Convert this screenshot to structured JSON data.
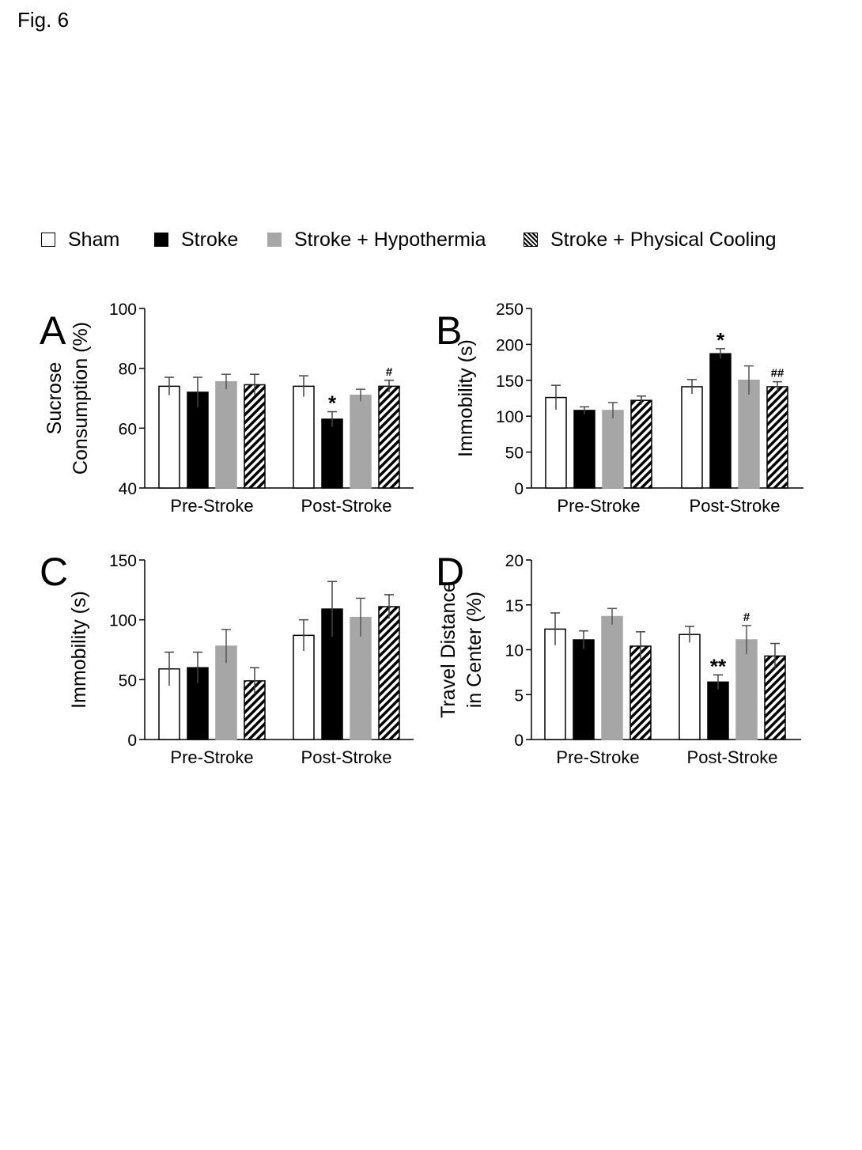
{
  "figure_title": "Fig. 6",
  "colors": {
    "sham": "#ffffff",
    "stroke": "#000000",
    "hypothermia": "#a6a6a6",
    "cooling_stripe": "#000000"
  },
  "legend": [
    {
      "key": "sham",
      "label": "Sham"
    },
    {
      "key": "stroke",
      "label": "Stroke"
    },
    {
      "key": "hypothermia",
      "label": "Stroke + Hypothermia"
    },
    {
      "key": "cooling",
      "label": "Stroke + Physical Cooling"
    }
  ],
  "chart_data": [
    {
      "panel": "A",
      "type": "bar",
      "ylabel": [
        "Sucrose",
        "Consumption (%)"
      ],
      "ylim": [
        40,
        100
      ],
      "yticks": [
        "40",
        "60",
        "80",
        "100"
      ],
      "categories": [
        "Pre-Stroke",
        "Post-Stroke"
      ],
      "series": [
        {
          "key": "sham",
          "values": [
            74,
            74
          ],
          "errors": [
            3,
            3.5
          ]
        },
        {
          "key": "stroke",
          "values": [
            72,
            63
          ],
          "errors": [
            5,
            2.5
          ]
        },
        {
          "key": "hypothermia",
          "values": [
            75.5,
            71
          ],
          "errors": [
            2.5,
            2
          ]
        },
        {
          "key": "cooling",
          "values": [
            74.5,
            74
          ],
          "errors": [
            3.5,
            2
          ]
        }
      ],
      "annotations": [
        {
          "category": 1,
          "series": 1,
          "text": "*"
        },
        {
          "category": 1,
          "series": 3,
          "text": "#"
        }
      ]
    },
    {
      "panel": "B",
      "type": "bar",
      "ylabel": [
        "Immobility (s)"
      ],
      "ylim": [
        0,
        250
      ],
      "yticks": [
        "0",
        "50",
        "100",
        "150",
        "200",
        "250"
      ],
      "categories": [
        "Pre-Stroke",
        "Post-Stroke"
      ],
      "series": [
        {
          "key": "sham",
          "values": [
            126,
            141
          ],
          "errors": [
            17,
            10
          ]
        },
        {
          "key": "stroke",
          "values": [
            108,
            187
          ],
          "errors": [
            5,
            7
          ]
        },
        {
          "key": "hypothermia",
          "values": [
            108,
            150
          ],
          "errors": [
            11,
            20
          ]
        },
        {
          "key": "cooling",
          "values": [
            122,
            141
          ],
          "errors": [
            6,
            7
          ]
        }
      ],
      "annotations": [
        {
          "category": 1,
          "series": 1,
          "text": "*"
        },
        {
          "category": 1,
          "series": 3,
          "text": "##"
        }
      ]
    },
    {
      "panel": "C",
      "type": "bar",
      "ylabel": [
        "Immobility (s)"
      ],
      "ylim": [
        0,
        150
      ],
      "yticks": [
        "0",
        "50",
        "100",
        "150"
      ],
      "categories": [
        "Pre-Stroke",
        "Post-Stroke"
      ],
      "series": [
        {
          "key": "sham",
          "values": [
            59,
            87
          ],
          "errors": [
            14,
            13
          ]
        },
        {
          "key": "stroke",
          "values": [
            60,
            109
          ],
          "errors": [
            13,
            23
          ]
        },
        {
          "key": "hypothermia",
          "values": [
            78,
            102
          ],
          "errors": [
            14,
            16
          ]
        },
        {
          "key": "cooling",
          "values": [
            49,
            111
          ],
          "errors": [
            11,
            10
          ]
        }
      ],
      "annotations": []
    },
    {
      "panel": "D",
      "type": "bar",
      "ylabel": [
        "Travel  Distance",
        "in  Center (%)"
      ],
      "ylim": [
        0,
        20
      ],
      "yticks": [
        "0",
        "5",
        "10",
        "15",
        "20"
      ],
      "categories": [
        "Pre-Stroke",
        "Post-Stroke"
      ],
      "series": [
        {
          "key": "sham",
          "values": [
            12.3,
            11.7
          ],
          "errors": [
            1.8,
            0.9
          ]
        },
        {
          "key": "stroke",
          "values": [
            11.1,
            6.4
          ],
          "errors": [
            1.0,
            0.8
          ]
        },
        {
          "key": "hypothermia",
          "values": [
            13.7,
            11.1
          ],
          "errors": [
            0.9,
            1.6
          ]
        },
        {
          "key": "cooling",
          "values": [
            10.4,
            9.3
          ],
          "errors": [
            1.6,
            1.4
          ]
        }
      ],
      "annotations": [
        {
          "category": 1,
          "series": 1,
          "text": "**"
        },
        {
          "category": 1,
          "series": 2,
          "text": "#"
        }
      ]
    }
  ]
}
